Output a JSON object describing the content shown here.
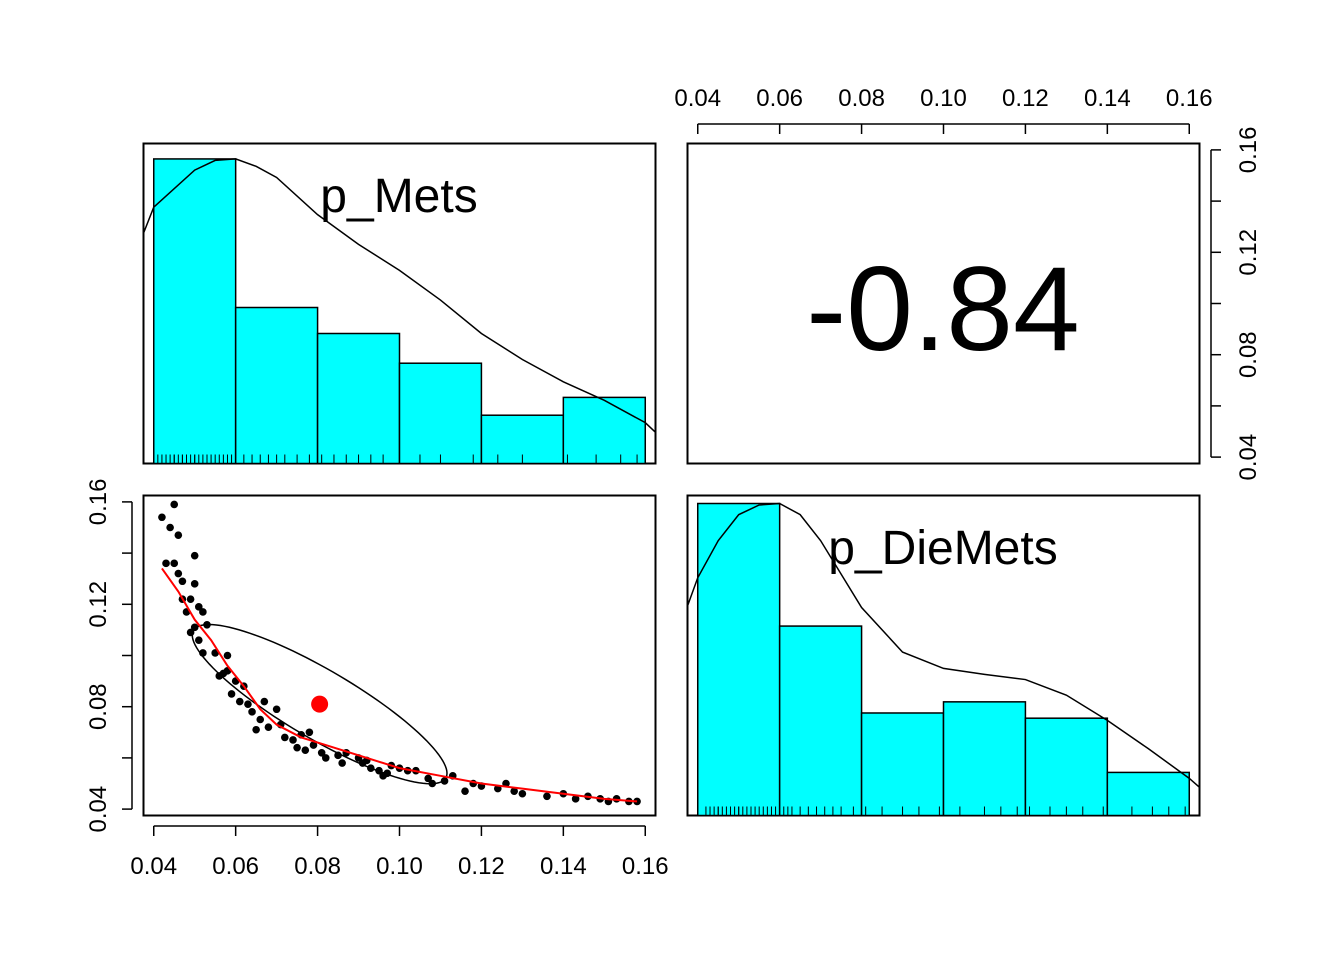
{
  "colors": {
    "hist_fill": "#00ffff",
    "smoother": "#ff0000",
    "centroid": "#ff0000",
    "points": "#000000"
  },
  "axes": {
    "range": [
      0.0375,
      0.1625
    ],
    "ticks": [
      "0.04",
      "0.06",
      "0.08",
      "0.10",
      "0.12",
      "0.14",
      "0.16"
    ],
    "tick_values": [
      0.04,
      0.06,
      0.08,
      0.1,
      0.12,
      0.14,
      0.16
    ]
  },
  "chart_data": [
    {
      "type": "bar",
      "panel": "top-left (diagonal)",
      "title": "p_Mets",
      "bins": [
        [
          0.04,
          0.06
        ],
        [
          0.06,
          0.08
        ],
        [
          0.08,
          0.1
        ],
        [
          0.1,
          0.12
        ],
        [
          0.12,
          0.14
        ],
        [
          0.14,
          0.16
        ]
      ],
      "values": [
        0.41,
        0.21,
        0.175,
        0.135,
        0.065,
        0.089
      ],
      "ylim": [
        0,
        0.42
      ],
      "density_curve": [
        [
          0.0375,
          0.31
        ],
        [
          0.04,
          0.345
        ],
        [
          0.05,
          0.395
        ],
        [
          0.055,
          0.408
        ],
        [
          0.06,
          0.41
        ],
        [
          0.065,
          0.4
        ],
        [
          0.07,
          0.385
        ],
        [
          0.08,
          0.335
        ],
        [
          0.09,
          0.295
        ],
        [
          0.1,
          0.26
        ],
        [
          0.11,
          0.22
        ],
        [
          0.12,
          0.175
        ],
        [
          0.13,
          0.14
        ],
        [
          0.14,
          0.11
        ],
        [
          0.15,
          0.085
        ],
        [
          0.16,
          0.055
        ],
        [
          0.1625,
          0.042
        ]
      ],
      "rug": [
        0.041,
        0.042,
        0.043,
        0.044,
        0.045,
        0.045,
        0.046,
        0.047,
        0.047,
        0.048,
        0.049,
        0.05,
        0.05,
        0.051,
        0.052,
        0.053,
        0.054,
        0.055,
        0.056,
        0.057,
        0.058,
        0.059,
        0.062,
        0.064,
        0.066,
        0.068,
        0.07,
        0.072,
        0.075,
        0.078,
        0.081,
        0.084,
        0.087,
        0.09,
        0.093,
        0.096,
        0.1,
        0.105,
        0.11,
        0.118,
        0.124,
        0.13,
        0.141,
        0.148,
        0.154,
        0.158
      ]
    },
    {
      "type": "table",
      "panel": "top-right (correlation)",
      "value": "-0.84"
    },
    {
      "type": "scatter",
      "panel": "bottom-left (p_Mets vs p_DieMets)",
      "xlim": [
        0.0375,
        0.1625
      ],
      "ylim": [
        0.0375,
        0.1625
      ],
      "points": [
        [
          0.042,
          0.154
        ],
        [
          0.044,
          0.15
        ],
        [
          0.045,
          0.159
        ],
        [
          0.046,
          0.147
        ],
        [
          0.043,
          0.136
        ],
        [
          0.045,
          0.136
        ],
        [
          0.046,
          0.132
        ],
        [
          0.047,
          0.129
        ],
        [
          0.047,
          0.122
        ],
        [
          0.048,
          0.117
        ],
        [
          0.049,
          0.122
        ],
        [
          0.05,
          0.139
        ],
        [
          0.05,
          0.128
        ],
        [
          0.051,
          0.119
        ],
        [
          0.052,
          0.117
        ],
        [
          0.049,
          0.109
        ],
        [
          0.05,
          0.111
        ],
        [
          0.051,
          0.106
        ],
        [
          0.053,
          0.112
        ],
        [
          0.052,
          0.101
        ],
        [
          0.055,
          0.101
        ],
        [
          0.057,
          0.093
        ],
        [
          0.058,
          0.1
        ],
        [
          0.06,
          0.09
        ],
        [
          0.062,
          0.088
        ],
        [
          0.056,
          0.092
        ],
        [
          0.059,
          0.085
        ],
        [
          0.061,
          0.082
        ],
        [
          0.063,
          0.081
        ],
        [
          0.064,
          0.078
        ],
        [
          0.066,
          0.075
        ],
        [
          0.068,
          0.072
        ],
        [
          0.065,
          0.071
        ],
        [
          0.07,
          0.079
        ],
        [
          0.072,
          0.068
        ],
        [
          0.074,
          0.067
        ],
        [
          0.075,
          0.064
        ],
        [
          0.077,
          0.063
        ],
        [
          0.079,
          0.065
        ],
        [
          0.081,
          0.062
        ],
        [
          0.082,
          0.06
        ],
        [
          0.085,
          0.061
        ],
        [
          0.087,
          0.062
        ],
        [
          0.09,
          0.06
        ],
        [
          0.091,
          0.058
        ],
        [
          0.093,
          0.056
        ],
        [
          0.095,
          0.055
        ],
        [
          0.096,
          0.053
        ],
        [
          0.097,
          0.054
        ],
        [
          0.1,
          0.056
        ],
        [
          0.102,
          0.055
        ],
        [
          0.104,
          0.055
        ],
        [
          0.107,
          0.052
        ],
        [
          0.108,
          0.05
        ],
        [
          0.111,
          0.051
        ],
        [
          0.113,
          0.053
        ],
        [
          0.116,
          0.047
        ],
        [
          0.118,
          0.05
        ],
        [
          0.12,
          0.049
        ],
        [
          0.124,
          0.048
        ],
        [
          0.126,
          0.05
        ],
        [
          0.128,
          0.047
        ],
        [
          0.13,
          0.046
        ],
        [
          0.136,
          0.045
        ],
        [
          0.14,
          0.046
        ],
        [
          0.143,
          0.044
        ],
        [
          0.146,
          0.045
        ],
        [
          0.149,
          0.044
        ],
        [
          0.151,
          0.043
        ],
        [
          0.153,
          0.044
        ],
        [
          0.156,
          0.043
        ],
        [
          0.158,
          0.043
        ],
        [
          0.067,
          0.082
        ],
        [
          0.071,
          0.073
        ],
        [
          0.076,
          0.069
        ],
        [
          0.086,
          0.058
        ],
        [
          0.092,
          0.059
        ],
        [
          0.098,
          0.057
        ],
        [
          0.078,
          0.07
        ],
        [
          0.058,
          0.094
        ]
      ],
      "centroid": [
        0.0805,
        0.081
      ],
      "smoother": [
        [
          0.042,
          0.134
        ],
        [
          0.046,
          0.125
        ],
        [
          0.05,
          0.114
        ],
        [
          0.054,
          0.106
        ],
        [
          0.058,
          0.096
        ],
        [
          0.062,
          0.088
        ],
        [
          0.066,
          0.079
        ],
        [
          0.07,
          0.073
        ],
        [
          0.076,
          0.068
        ],
        [
          0.082,
          0.065
        ],
        [
          0.09,
          0.061
        ],
        [
          0.1,
          0.056
        ],
        [
          0.11,
          0.053
        ],
        [
          0.12,
          0.05
        ],
        [
          0.13,
          0.048
        ],
        [
          0.14,
          0.046
        ],
        [
          0.15,
          0.044
        ],
        [
          0.158,
          0.043
        ]
      ],
      "ellipse": {
        "center": [
          0.0805,
          0.081
        ],
        "angle_deg": -45,
        "semi_major": 0.0425,
        "semi_minor": 0.0113
      }
    },
    {
      "type": "bar",
      "panel": "bottom-right (diagonal)",
      "title": "p_DieMets",
      "bins": [
        [
          0.04,
          0.06
        ],
        [
          0.06,
          0.08
        ],
        [
          0.08,
          0.1
        ],
        [
          0.1,
          0.12
        ],
        [
          0.12,
          0.14
        ],
        [
          0.14,
          0.16
        ]
      ],
      "values": [
        0.42,
        0.255,
        0.138,
        0.153,
        0.131,
        0.058
      ],
      "ylim": [
        0,
        0.42
      ],
      "density_curve": [
        [
          0.0375,
          0.282
        ],
        [
          0.04,
          0.32
        ],
        [
          0.045,
          0.37
        ],
        [
          0.05,
          0.405
        ],
        [
          0.055,
          0.418
        ],
        [
          0.06,
          0.42
        ],
        [
          0.065,
          0.405
        ],
        [
          0.07,
          0.37
        ],
        [
          0.08,
          0.28
        ],
        [
          0.09,
          0.22
        ],
        [
          0.1,
          0.198
        ],
        [
          0.11,
          0.19
        ],
        [
          0.12,
          0.183
        ],
        [
          0.13,
          0.162
        ],
        [
          0.14,
          0.128
        ],
        [
          0.15,
          0.09
        ],
        [
          0.16,
          0.05
        ],
        [
          0.1625,
          0.038
        ]
      ],
      "rug": [
        0.042,
        0.043,
        0.044,
        0.045,
        0.045,
        0.046,
        0.047,
        0.048,
        0.048,
        0.049,
        0.05,
        0.05,
        0.051,
        0.052,
        0.053,
        0.054,
        0.055,
        0.056,
        0.057,
        0.058,
        0.059,
        0.061,
        0.062,
        0.063,
        0.065,
        0.067,
        0.069,
        0.071,
        0.073,
        0.075,
        0.078,
        0.081,
        0.085,
        0.09,
        0.094,
        0.099,
        0.104,
        0.11,
        0.114,
        0.118,
        0.121,
        0.126,
        0.13,
        0.134,
        0.139,
        0.146,
        0.151,
        0.155,
        0.159
      ]
    }
  ]
}
